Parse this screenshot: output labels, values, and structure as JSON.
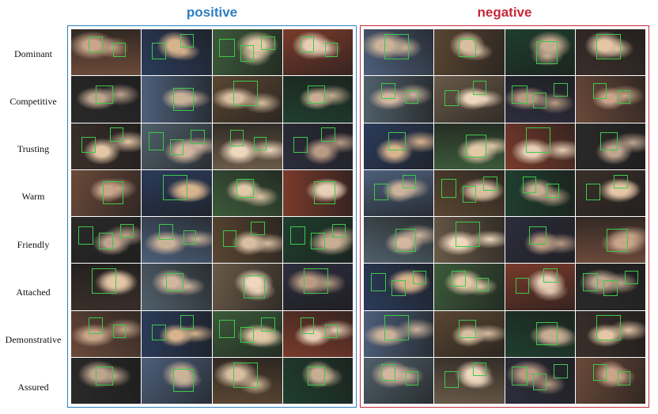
{
  "figure": {
    "positive_title": "positive",
    "negative_title": "negative",
    "colors": {
      "positive": "#2d7fc1",
      "negative": "#c8283a",
      "face_box": "#3ec94a"
    },
    "row_labels": [
      "Dominant",
      "Competitive",
      "Trusting",
      "Warm",
      "Friendly",
      "Attached",
      "Demonstrative",
      "Assured"
    ],
    "image_grid": {
      "rows": 8,
      "columns_per_panel": 4,
      "content": "photographs of people with green face bounding boxes"
    }
  }
}
